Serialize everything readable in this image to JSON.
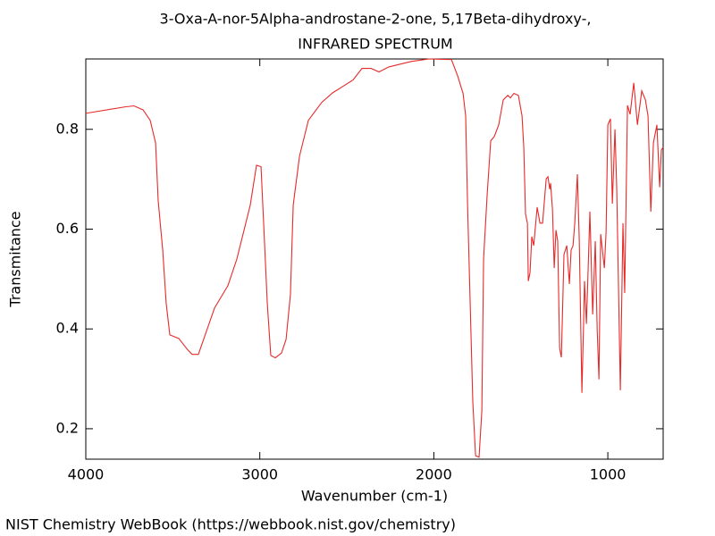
{
  "chart_data": {
    "type": "line",
    "title": "3-Oxa-A-nor-5Alpha-androstane-2-one, 5,17Beta-dihydroxy-,",
    "subtitle": "INFRARED SPECTRUM",
    "x_label": "Wavenumber (cm-1)",
    "y_label": "Transmitance",
    "footer": "NIST Chemistry WebBook (https://webbook.nist.gov/chemistry)",
    "color": "#e62a2a",
    "xlim": [
      4000,
      682
    ],
    "ylim": [
      0.139,
      0.941
    ],
    "xticks": [
      4000,
      3000,
      2000,
      1000
    ],
    "yticks": [
      0.2,
      0.4,
      0.6,
      0.8
    ],
    "x": [
      4000,
      3774,
      3723,
      3671,
      3630,
      3599,
      3584,
      3558,
      3538,
      3517,
      3466,
      3414,
      3389,
      3353,
      3332,
      3260,
      3183,
      3132,
      3055,
      3019,
      2993,
      2978,
      2957,
      2937,
      2911,
      2875,
      2849,
      2824,
      2808,
      2772,
      2721,
      2644,
      2582,
      2464,
      2413,
      2361,
      2315,
      2259,
      2130,
      2027,
      1925,
      1899,
      1863,
      1832,
      1817,
      1806,
      1791,
      1776,
      1760,
      1740,
      1724,
      1714,
      1694,
      1673,
      1652,
      1627,
      1601,
      1575,
      1560,
      1540,
      1514,
      1493,
      1483,
      1473,
      1462,
      1457,
      1447,
      1437,
      1426,
      1406,
      1390,
      1375,
      1354,
      1344,
      1334,
      1329,
      1318,
      1308,
      1298,
      1288,
      1277,
      1267,
      1252,
      1236,
      1221,
      1211,
      1200,
      1190,
      1175,
      1164,
      1149,
      1139,
      1134,
      1123,
      1113,
      1103,
      1087,
      1072,
      1061,
      1051,
      1041,
      1020,
      1010,
      1000,
      985,
      974,
      959,
      949,
      928,
      913,
      903,
      887,
      872,
      851,
      830,
      805,
      784,
      769,
      753,
      738,
      718,
      702,
      692,
      682
    ],
    "values": [
      0.832,
      0.845,
      0.847,
      0.839,
      0.818,
      0.773,
      0.657,
      0.558,
      0.451,
      0.388,
      0.381,
      0.358,
      0.349,
      0.349,
      0.37,
      0.442,
      0.487,
      0.54,
      0.648,
      0.728,
      0.725,
      0.612,
      0.451,
      0.347,
      0.342,
      0.352,
      0.379,
      0.469,
      0.648,
      0.746,
      0.818,
      0.854,
      0.873,
      0.899,
      0.922,
      0.922,
      0.915,
      0.925,
      0.936,
      0.941,
      0.94,
      0.94,
      0.907,
      0.872,
      0.827,
      0.648,
      0.451,
      0.254,
      0.146,
      0.143,
      0.236,
      0.54,
      0.666,
      0.777,
      0.786,
      0.809,
      0.859,
      0.868,
      0.863,
      0.872,
      0.868,
      0.827,
      0.764,
      0.63,
      0.612,
      0.496,
      0.513,
      0.585,
      0.567,
      0.644,
      0.612,
      0.612,
      0.701,
      0.705,
      0.68,
      0.692,
      0.639,
      0.522,
      0.598,
      0.576,
      0.361,
      0.343,
      0.549,
      0.567,
      0.49,
      0.558,
      0.567,
      0.612,
      0.71,
      0.576,
      0.272,
      0.415,
      0.496,
      0.41,
      0.522,
      0.635,
      0.429,
      0.576,
      0.397,
      0.299,
      0.59,
      0.522,
      0.594,
      0.809,
      0.821,
      0.651,
      0.8,
      0.684,
      0.277,
      0.612,
      0.472,
      0.848,
      0.83,
      0.893,
      0.809,
      0.877,
      0.859,
      0.827,
      0.635,
      0.773,
      0.809,
      0.684,
      0.759,
      0.764
    ]
  }
}
